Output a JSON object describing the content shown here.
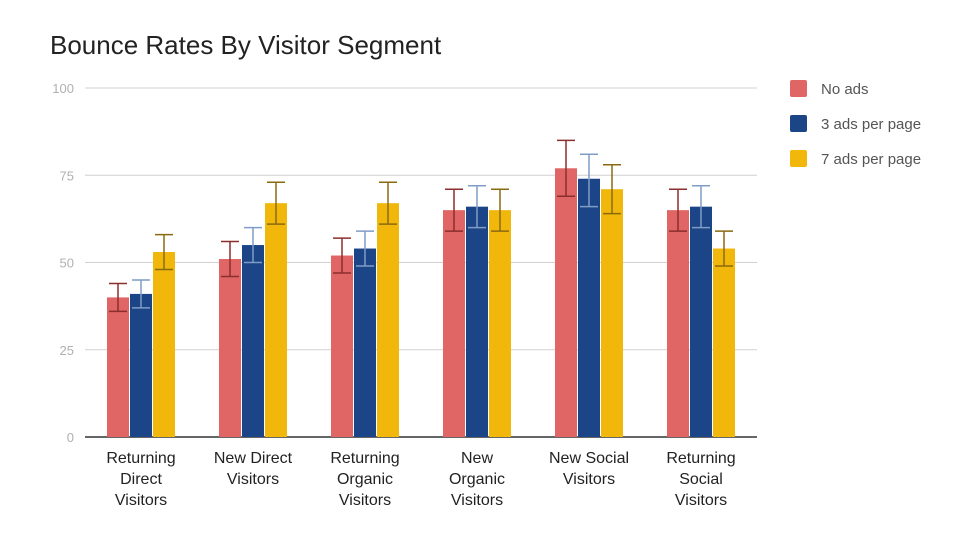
{
  "chart_data": {
    "type": "bar",
    "title": "Bounce Rates By Visitor Segment",
    "xlabel": "",
    "ylabel": "",
    "ylim": [
      0,
      100
    ],
    "yticks": [
      0,
      25,
      50,
      75,
      100
    ],
    "grid": true,
    "legend_position": "right",
    "categories": [
      [
        "Returning",
        "Direct",
        "Visitors"
      ],
      [
        "New Direct",
        "Visitors"
      ],
      [
        "Returning",
        "Organic",
        "Visitors"
      ],
      [
        "New",
        "Organic",
        "Visitors"
      ],
      [
        "New Social",
        "Visitors"
      ],
      [
        "Returning",
        "Social",
        "Visitors"
      ]
    ],
    "series": [
      {
        "name": "No ads",
        "color": "#e06666",
        "error_color": "#8b2e2e",
        "values": [
          40,
          51,
          52,
          65,
          77,
          65
        ],
        "error_low": [
          36,
          46,
          47,
          59,
          69,
          59
        ],
        "error_high": [
          44,
          56,
          57,
          71,
          85,
          71
        ]
      },
      {
        "name": "3 ads per page",
        "color": "#1c4587",
        "error_color": "#7f9cc6",
        "values": [
          41,
          55,
          54,
          66,
          74,
          66
        ],
        "error_low": [
          37,
          50,
          49,
          60,
          66,
          60
        ],
        "error_high": [
          45,
          60,
          59,
          72,
          81,
          72
        ]
      },
      {
        "name": "7 ads per page",
        "color": "#f1b70a",
        "error_color": "#8a6a10",
        "values": [
          53,
          67,
          67,
          65,
          71,
          54
        ],
        "error_low": [
          48,
          61,
          61,
          59,
          64,
          49
        ],
        "error_high": [
          58,
          73,
          73,
          71,
          78,
          59
        ]
      }
    ]
  }
}
